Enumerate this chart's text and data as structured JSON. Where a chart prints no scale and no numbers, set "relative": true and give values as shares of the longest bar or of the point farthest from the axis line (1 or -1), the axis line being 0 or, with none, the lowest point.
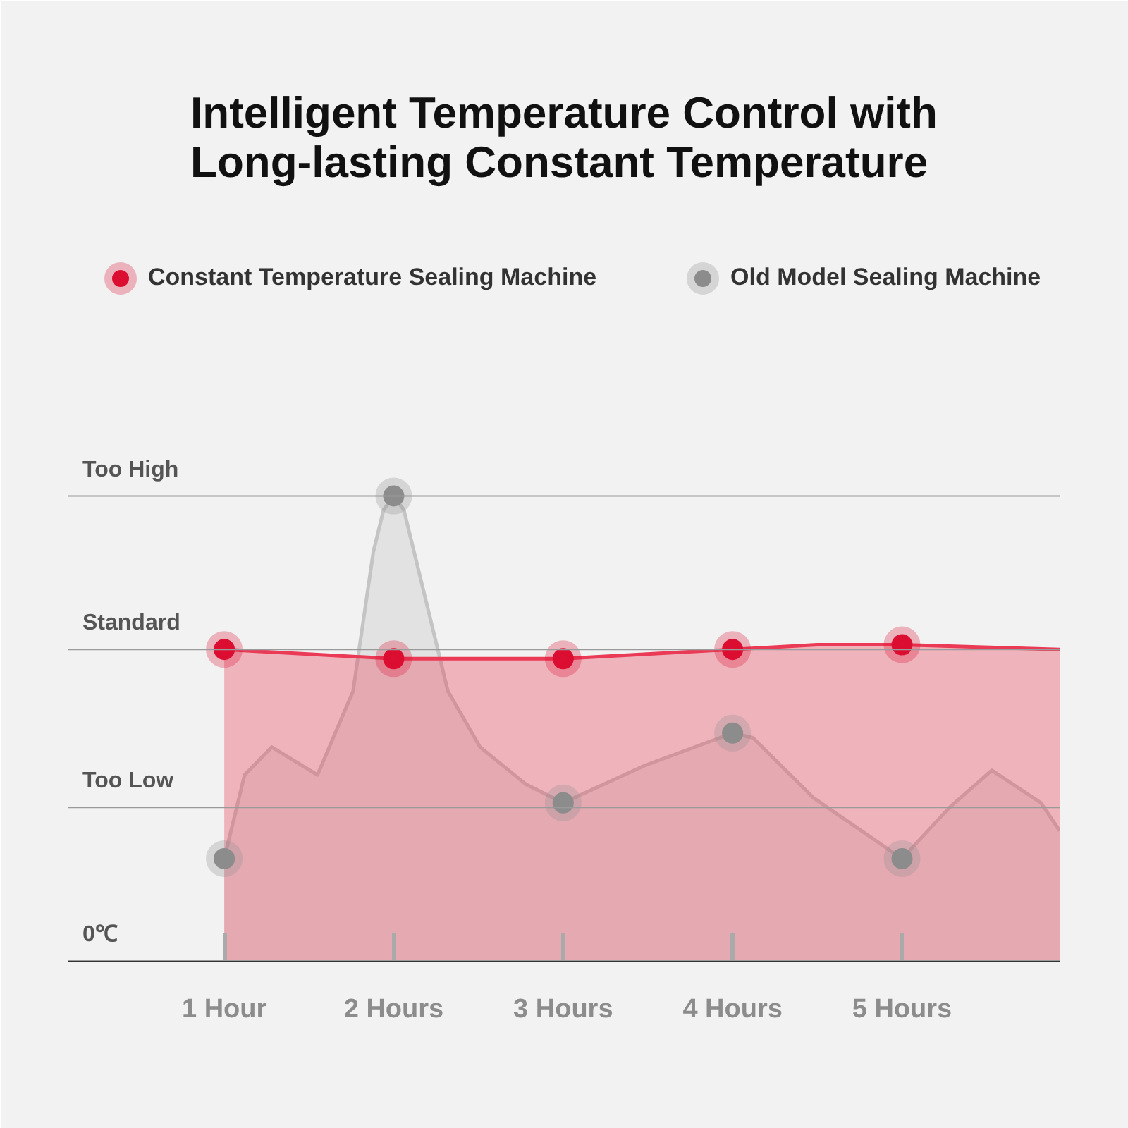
{
  "chart_data": {
    "type": "area",
    "title": "Intelligent Temperature Control with Long-lasting Constant Temperature",
    "relative": true,
    "xlim": [
      0.08,
      5.93
    ],
    "xticks": [
      {
        "value": 1,
        "label": "1 Hour"
      },
      {
        "value": 2,
        "label": "2 Hours"
      },
      {
        "value": 3,
        "label": "3 Hours"
      },
      {
        "value": 4,
        "label": "4 Hours"
      },
      {
        "value": 5,
        "label": "5 Hours"
      }
    ],
    "ref_lines": [
      {
        "axis": "y",
        "value": 0,
        "label": "0℃"
      },
      {
        "axis": "y",
        "value": 0.33,
        "label": "Too Low"
      },
      {
        "axis": "y",
        "value": 0.67,
        "label": "Standard"
      },
      {
        "axis": "y",
        "value": 1,
        "label": "Too High"
      }
    ],
    "legend": "top left",
    "series": [
      {
        "color": "#c4c4c4",
        "x": [
          1.0,
          1.12,
          1.28,
          1.55,
          1.76,
          1.88,
          1.94,
          2.0,
          2.06,
          2.12,
          2.32,
          2.51,
          2.78,
          3.0,
          3.48,
          4.0,
          4.12,
          4.48,
          5.0,
          5.28,
          5.53,
          5.82,
          5.93
        ],
        "values": [
          0.22,
          0.4,
          0.46,
          0.4,
          0.58,
          0.88,
          0.97,
          1,
          0.97,
          0.88,
          0.58,
          0.46,
          0.38,
          0.34,
          0.42,
          0.49,
          0.48,
          0.35,
          0.22,
          0.33,
          0.41,
          0.34,
          0.28
        ]
      },
      {
        "color": "#ea3a55",
        "x": [
          1,
          2,
          3,
          4,
          4.5,
          5,
          5.93
        ],
        "values": [
          0.67,
          0.65,
          0.65,
          0.67,
          0.68,
          0.68,
          0.67
        ]
      },
      {
        "type": "scatter",
        "name": "Constant Temperature Sealing Machine",
        "color": "#dc0f33",
        "x": [
          1,
          2,
          3,
          4,
          5
        ],
        "values": [
          0.67,
          0.65,
          0.65,
          0.67,
          0.68
        ]
      },
      {
        "type": "scatter",
        "name": "Old Model Sealing Machine",
        "color": "#8c8c8c",
        "x": [
          1,
          2,
          3,
          4,
          5
        ],
        "values": [
          0.22,
          1,
          0.34,
          0.49,
          0.22
        ]
      }
    ]
  }
}
